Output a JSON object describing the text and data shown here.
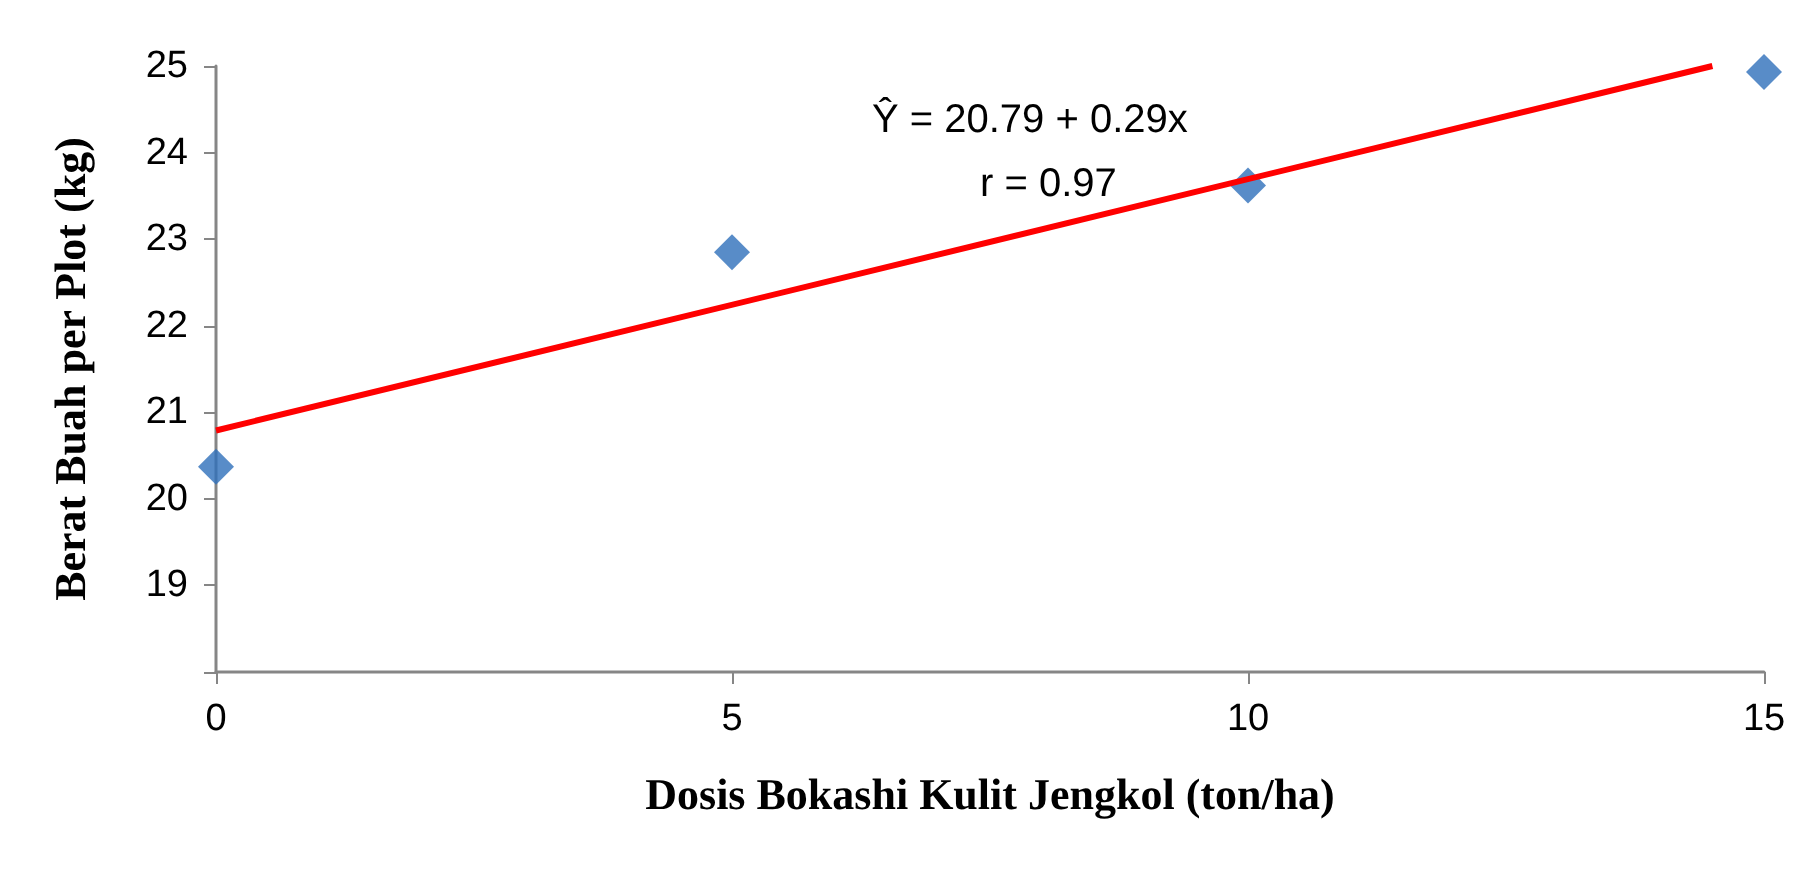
{
  "chart_data": {
    "type": "scatter",
    "xlabel": "Dosis Bokashi Kulit Jengkol (ton/ha)",
    "ylabel": "Berat Buah per Plot (kg)",
    "series": [
      {
        "color": "#2e6fba",
        "marker": "diamond",
        "x": [
          0,
          5,
          10,
          15
        ],
        "values": [
          20.37,
          22.85,
          23.62,
          24.93
        ]
      },
      {
        "type": "line",
        "color": "#ff0000",
        "marker": "none",
        "x": [
          0,
          14.5
        ],
        "values": [
          20.79,
          25.0
        ]
      }
    ],
    "xlim": [
      0,
      15
    ],
    "xticks": [
      0,
      5,
      10,
      15
    ],
    "ylim": [
      18,
      25
    ],
    "yticks": [
      {
        "value": 18,
        "label": null
      },
      19,
      20,
      21,
      22,
      23,
      24,
      25
    ],
    "grid": false,
    "annotations": [
      "Ŷ = 20.79 + 0.29x",
      "r = 0.97"
    ]
  }
}
